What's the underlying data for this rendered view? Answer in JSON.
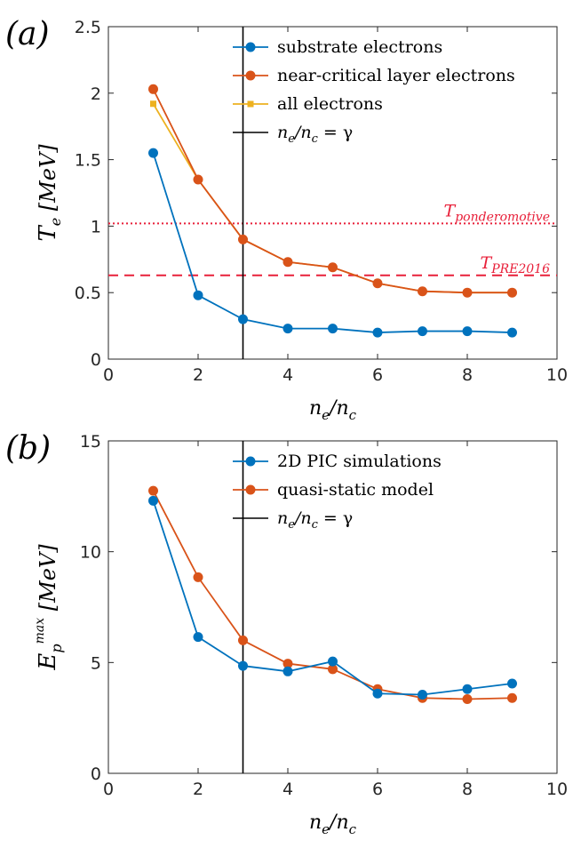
{
  "chart_data": [
    {
      "type": "line",
      "panel_label": "(a)",
      "xlabel": "n_e/n_c",
      "ylabel": "T_e [MeV]",
      "xlim": [
        0,
        10
      ],
      "ylim": [
        0,
        2.5
      ],
      "xticks": [
        0,
        2,
        4,
        6,
        8,
        10
      ],
      "yticks": [
        0,
        0.5,
        1,
        1.5,
        2,
        2.5
      ],
      "grid": false,
      "legend_position": "top-right",
      "series": [
        {
          "name": "substrate electrons",
          "color": "#0072BD",
          "marker": "circle",
          "x": [
            1,
            2,
            3,
            4,
            5,
            6,
            7,
            8,
            9
          ],
          "y": [
            1.55,
            0.48,
            0.3,
            0.23,
            0.23,
            0.2,
            0.21,
            0.21,
            0.2
          ]
        },
        {
          "name": "near-critical layer electrons",
          "color": "#D95319",
          "marker": "circle",
          "x": [
            1,
            2,
            3,
            4,
            5,
            6,
            7,
            8,
            9
          ],
          "y": [
            2.03,
            1.35,
            0.9,
            0.73,
            0.69,
            0.57,
            0.51,
            0.5,
            0.5
          ]
        },
        {
          "name": "all electrons",
          "color": "#EDB120",
          "marker": "square",
          "x": [
            1,
            2,
            3,
            4,
            5,
            6,
            7,
            8,
            9
          ],
          "y": [
            1.92,
            1.35,
            0.9,
            0.73,
            0.69,
            0.57,
            0.51,
            0.5,
            0.5
          ]
        }
      ],
      "vline": {
        "x": 3,
        "label": "n_e/n_c = γ",
        "color": "#000000"
      },
      "hlines": [
        {
          "y": 1.02,
          "label": "T_ponderomotive",
          "style": "dotted",
          "color": "#e8203a"
        },
        {
          "y": 0.63,
          "label": "T_PRE2016",
          "style": "dashed",
          "color": "#e8203a"
        }
      ]
    },
    {
      "type": "line",
      "panel_label": "(b)",
      "xlabel": "n_e/n_c",
      "ylabel": "E_p^max [MeV]",
      "xlim": [
        0,
        10
      ],
      "ylim": [
        0,
        15
      ],
      "xticks": [
        0,
        2,
        4,
        6,
        8,
        10
      ],
      "yticks": [
        0,
        5,
        10,
        15
      ],
      "grid": false,
      "legend_position": "top-right",
      "series": [
        {
          "name": "2D PIC simulations",
          "color": "#0072BD",
          "marker": "circle",
          "x": [
            1,
            2,
            3,
            4,
            5,
            6,
            7,
            8,
            9
          ],
          "y": [
            12.3,
            6.15,
            4.85,
            4.6,
            5.05,
            3.6,
            3.55,
            3.8,
            4.05
          ]
        },
        {
          "name": "quasi-static model",
          "color": "#D95319",
          "marker": "circle",
          "x": [
            1,
            2,
            3,
            4,
            5,
            6,
            7,
            8,
            9
          ],
          "y": [
            12.75,
            8.85,
            6.0,
            4.95,
            4.7,
            3.8,
            3.4,
            3.35,
            3.4
          ]
        }
      ],
      "vline": {
        "x": 3,
        "label": "n_e/n_c = γ",
        "color": "#000000"
      }
    }
  ]
}
